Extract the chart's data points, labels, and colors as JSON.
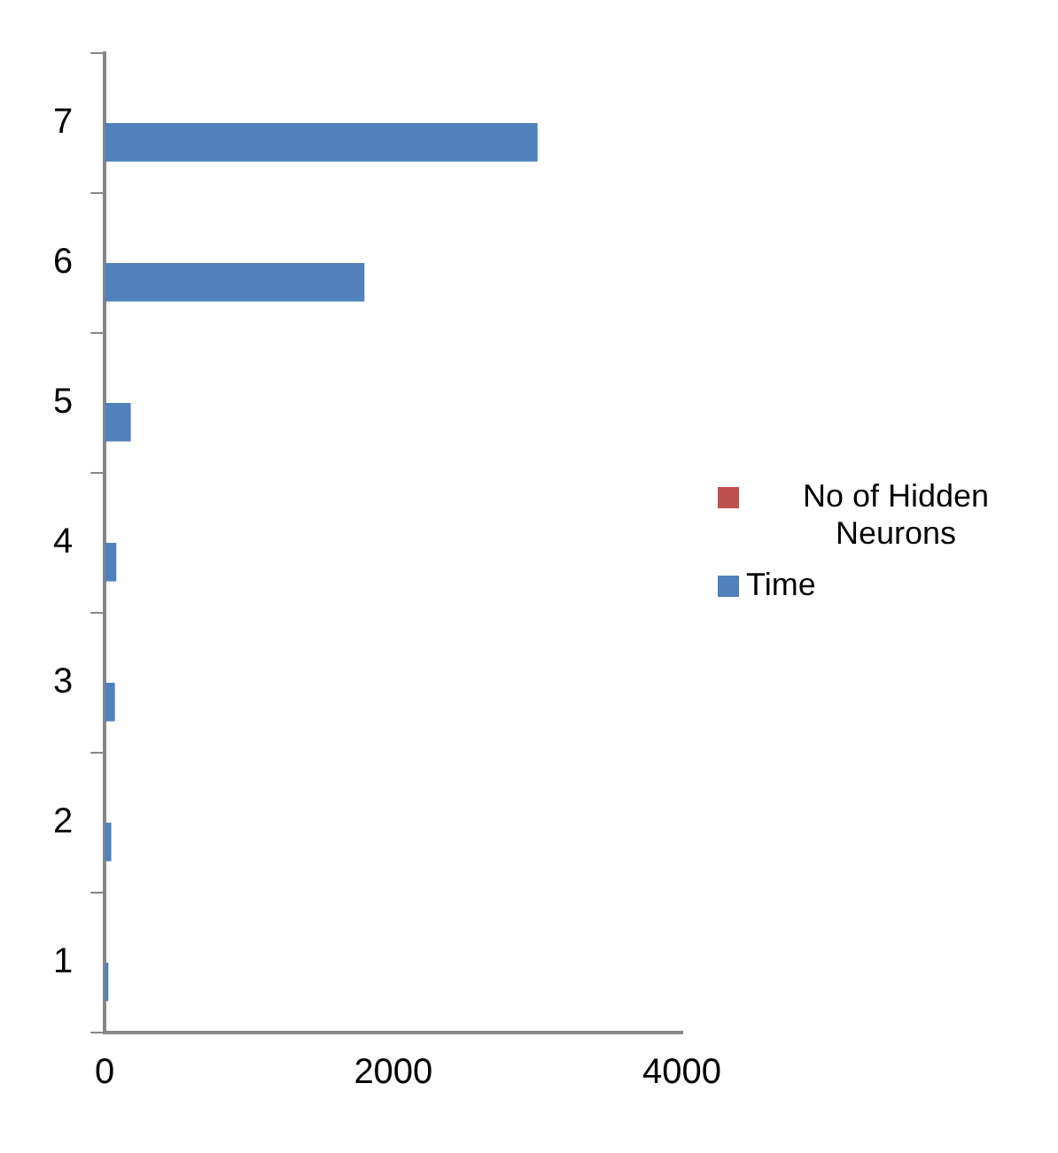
{
  "chart_data": {
    "type": "bar",
    "orientation": "horizontal",
    "categories": [
      "7",
      "6",
      "5",
      "4",
      "3",
      "2",
      "1"
    ],
    "series": [
      {
        "name": "No of Hidden Neurons",
        "color": "#c0504d",
        "values": [
          null,
          null,
          null,
          null,
          null,
          null,
          null
        ]
      },
      {
        "name": "Time",
        "color": "#4f81bd",
        "values": [
          3000,
          1800,
          180,
          80,
          70,
          45,
          25
        ]
      }
    ],
    "xlim": [
      0,
      4000
    ],
    "xticks": [
      0,
      2000,
      4000
    ],
    "grid": false,
    "legend": "right"
  }
}
